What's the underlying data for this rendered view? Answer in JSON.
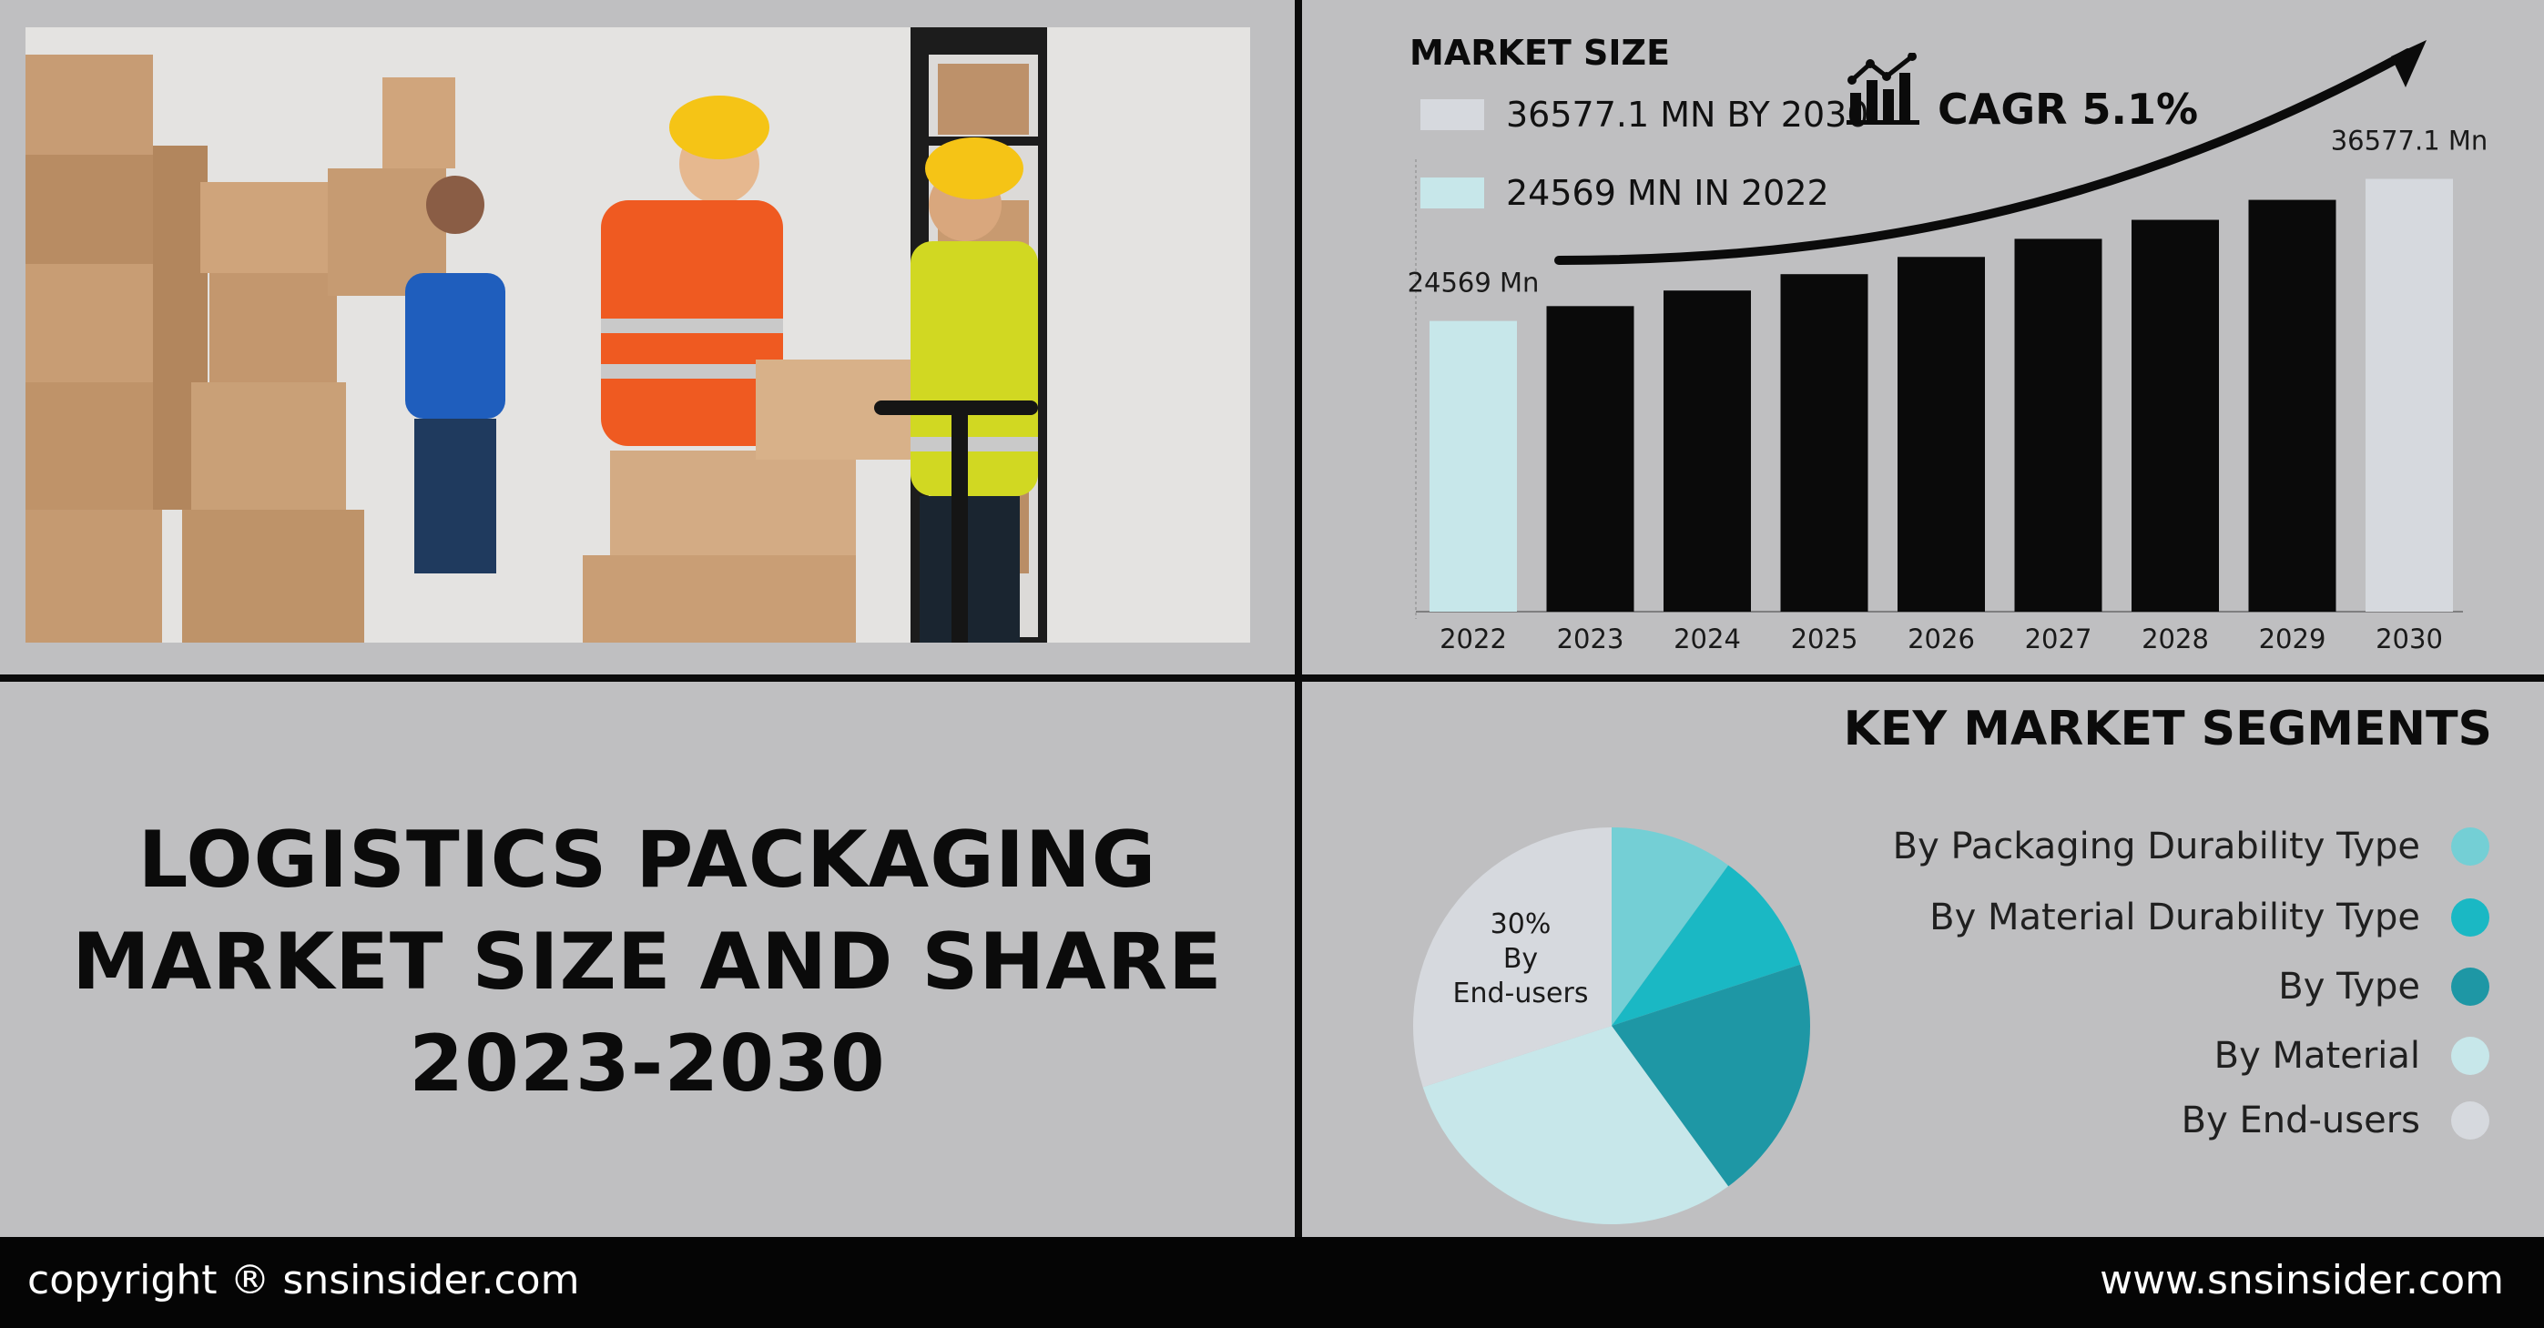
{
  "report": {
    "title_lines": [
      "LOGISTICS PACKAGING",
      "MARKET SIZE AND SHARE",
      "2023-2030"
    ]
  },
  "market_size": {
    "heading": "MARKET SIZE",
    "legend_2030": "36577.1 MN BY 2030",
    "legend_2022": "24569 MN IN 2022",
    "cagr": "CAGR 5.1%",
    "icon": "bar-chart-trend-icon"
  },
  "photo": {
    "description_icon": "warehouse-photo"
  },
  "segments": {
    "heading": "KEY MARKET SEGMENTS",
    "items": [
      {
        "label": "By Packaging Durability Type",
        "color": "#74cfd5"
      },
      {
        "label": "By Material Durability Type",
        "color": "#1ab8c4"
      },
      {
        "label": "By Type",
        "color": "#1e97a5"
      },
      {
        "label": "By Material",
        "color": "#c7e7ea"
      },
      {
        "label": "By End-users",
        "color": "#d6d9de"
      }
    ],
    "pie_label_pct": "30%",
    "pie_label_by": "By",
    "pie_label_name": "End-users"
  },
  "colors": {
    "bar_dark": "#0a0a0a",
    "bar_2022": "#c7e7ea",
    "bar_2030": "#d6d9de",
    "background": "#bfbfc1"
  },
  "footer": {
    "copyright": "copyright ® snsinsider.com",
    "website": "www.snsinsider.com"
  },
  "chart_data": [
    {
      "type": "bar",
      "categories": [
        "2022",
        "2023",
        "2024",
        "2025",
        "2026",
        "2027",
        "2028",
        "2029",
        "2030"
      ],
      "values": [
        24569,
        25822,
        27139,
        28523,
        29978,
        31507,
        33114,
        34802,
        36577.1
      ],
      "data_labels": {
        "2022": "24569 Mn",
        "2030": "36577.1 Mn"
      },
      "title": "",
      "xlabel": "",
      "ylabel": "",
      "ylim": [
        0,
        38000
      ]
    },
    {
      "type": "pie",
      "labels": [
        "By Packaging Durability Type",
        "By Material Durability Type",
        "By Type",
        "By Material",
        "By End-users"
      ],
      "values": [
        10,
        10,
        20,
        30,
        30
      ],
      "colors": [
        "#74cfd5",
        "#1ab8c4",
        "#1e97a5",
        "#c7e7ea",
        "#d6d9de"
      ],
      "annotation": "30% By End-users"
    }
  ]
}
